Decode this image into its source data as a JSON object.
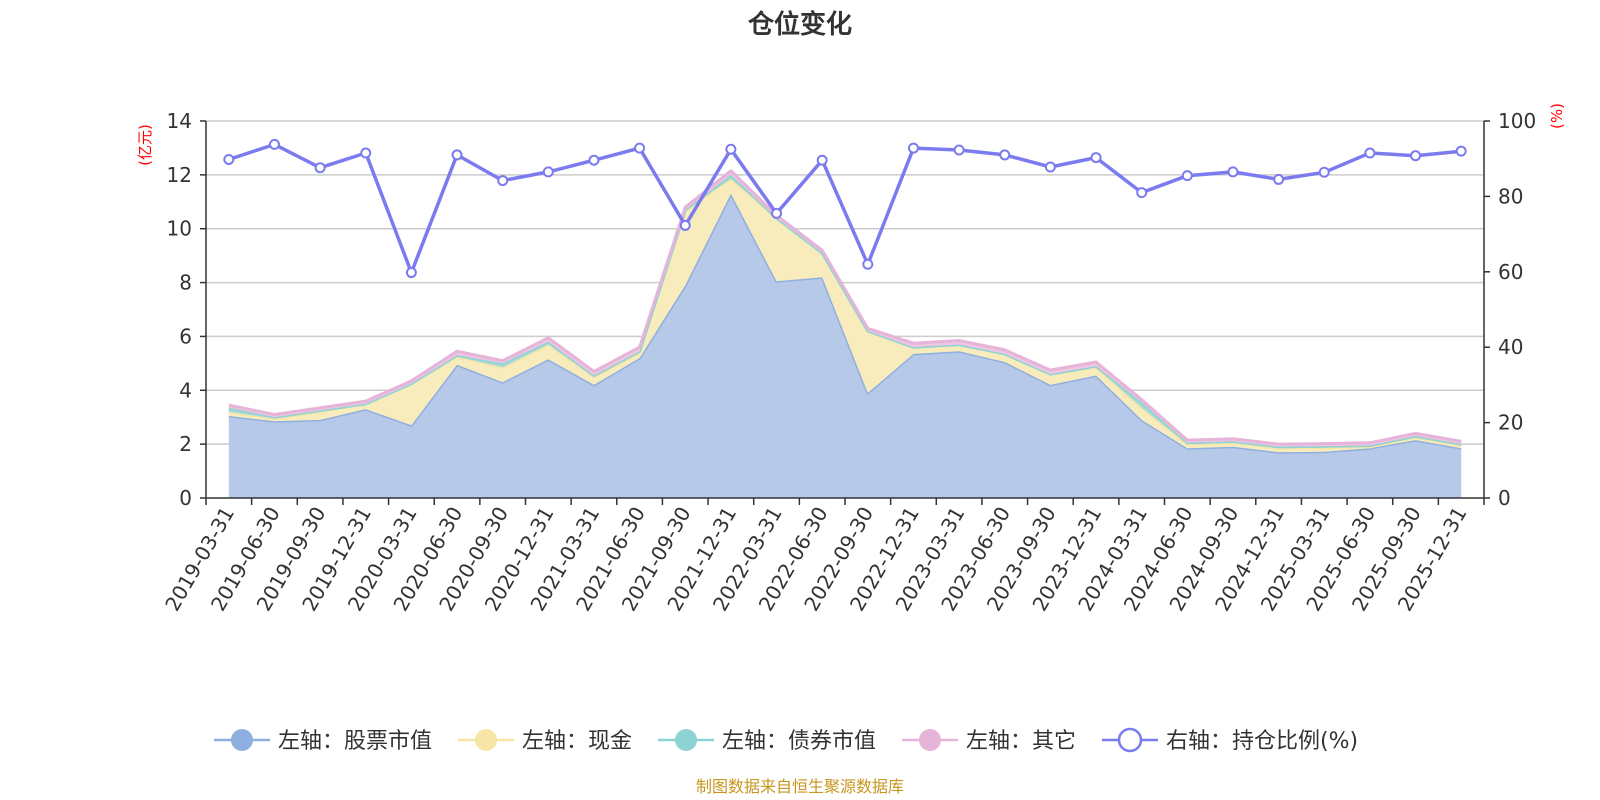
{
  "chart_data": {
    "type": "area",
    "title": "仓位变化",
    "left_axis_unit": "(亿元)",
    "right_axis_unit": "(%)",
    "left_ylim": [
      0,
      14
    ],
    "left_ticks": [
      0,
      2,
      4,
      6,
      8,
      10,
      12,
      14
    ],
    "right_ylim": [
      0,
      100
    ],
    "right_ticks": [
      0,
      20,
      40,
      60,
      80,
      100
    ],
    "categories": [
      "2019-03-31",
      "2019-06-30",
      "2019-09-30",
      "2019-12-31",
      "2020-03-31",
      "2020-06-30",
      "2020-09-30",
      "2020-12-31",
      "2021-03-31",
      "2021-06-30",
      "2021-09-30",
      "2021-12-31",
      "2022-03-31",
      "2022-06-30",
      "2022-09-30",
      "2022-12-31",
      "2023-03-31",
      "2023-06-30",
      "2023-09-30",
      "2023-12-31",
      "2024-03-31",
      "2024-06-30",
      "2024-09-30",
      "2024-12-31",
      "2025-03-31",
      "2025-06-30",
      "2025-09-30",
      "2025-12-31"
    ],
    "stacked_series": [
      {
        "name": "左轴：股票市值",
        "color": "#8fafe0",
        "fill": "#b7c9e8",
        "values": [
          3.05,
          2.85,
          2.9,
          3.3,
          2.7,
          4.95,
          4.3,
          5.15,
          4.2,
          5.2,
          7.9,
          11.3,
          8.05,
          8.2,
          3.9,
          5.35,
          5.45,
          5.05,
          4.2,
          4.55,
          2.9,
          1.85,
          1.9,
          1.7,
          1.72,
          1.85,
          2.15,
          1.85
        ]
      },
      {
        "name": "左轴：现金",
        "color": "#f5e6a8",
        "fill": "#f8ecbd",
        "values": [
          0.15,
          0.1,
          0.3,
          0.2,
          1.55,
          0.3,
          0.55,
          0.55,
          0.3,
          0.2,
          2.8,
          0.55,
          2.35,
          0.9,
          2.3,
          0.25,
          0.25,
          0.3,
          0.4,
          0.3,
          0.45,
          0.15,
          0.15,
          0.15,
          0.15,
          0.05,
          0.1,
          0.1
        ]
      },
      {
        "name": "左轴：债券市值",
        "color": "#8dd3d3",
        "fill": "#a6dada",
        "values": [
          0.15,
          0.05,
          0.05,
          0.0,
          0.0,
          0.05,
          0.15,
          0.1,
          0.05,
          0.05,
          0.0,
          0.15,
          0.0,
          0.0,
          0.0,
          0.0,
          0.0,
          0.0,
          0.0,
          0.05,
          0.2,
          0.05,
          0.05,
          0.05,
          0.05,
          0.05,
          0.05,
          0.05
        ]
      },
      {
        "name": "左轴：其它",
        "color": "#e6b3d9",
        "fill": "#eec6e2",
        "values": [
          0.1,
          0.1,
          0.1,
          0.1,
          0.1,
          0.15,
          0.1,
          0.15,
          0.15,
          0.15,
          0.1,
          0.15,
          0.1,
          0.1,
          0.1,
          0.15,
          0.15,
          0.15,
          0.15,
          0.15,
          0.1,
          0.1,
          0.1,
          0.1,
          0.1,
          0.1,
          0.1,
          0.1
        ]
      }
    ],
    "line_series": {
      "name": "右轴：持仓比例(%)",
      "color": "#7b7bef",
      "values": [
        89.8,
        93.8,
        87.6,
        91.5,
        59.8,
        91.0,
        84.2,
        86.5,
        89.6,
        92.8,
        72.3,
        92.5,
        75.5,
        89.6,
        62.0,
        92.8,
        92.3,
        91.0,
        87.8,
        90.3,
        81.0,
        85.5,
        86.5,
        84.5,
        86.4,
        91.5,
        90.8,
        92.0
      ]
    },
    "legend_position": "bottom",
    "grid": true
  },
  "source_note": "制图数据来自恒生聚源数据库"
}
